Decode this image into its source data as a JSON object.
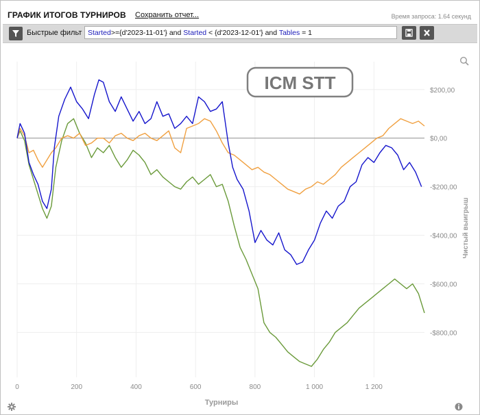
{
  "header": {
    "title": "ГРАФИК ИТОГОВ ТУРНИРОВ",
    "save_label": "Сохранить отчет...",
    "query_time": "Время запроса: 1.64 секунд"
  },
  "filter": {
    "label": "Быстрые фильт",
    "tokens": [
      {
        "t": "Started",
        "kw": true
      },
      {
        "t": ">={d'2023-11-01'} and ",
        "kw": false
      },
      {
        "t": "Started",
        "kw": true
      },
      {
        "t": " < {d'2023-12-01'} and ",
        "kw": false
      },
      {
        "t": "Tables",
        "kw": true
      },
      {
        "t": " = 1",
        "kw": false
      }
    ]
  },
  "icons": {
    "filter": "filter-icon",
    "save": "floppy-disk-icon",
    "clear": "close-icon",
    "zoom": "magnifier-icon",
    "settings": "gear-icon",
    "info": "info-icon"
  },
  "chart_data": {
    "type": "line",
    "watermark": "ICM STT",
    "xlabel": "Турниры",
    "ylabel": "Чистый выигрыш",
    "xlim": [
      0,
      1370
    ],
    "ylim": [
      -985,
      315
    ],
    "xticks": [
      0,
      200,
      400,
      600,
      800,
      1000,
      1200
    ],
    "xtick_labels": [
      "0",
      "200",
      "400",
      "600",
      "800",
      "1 000",
      "1 200"
    ],
    "yticks": [
      200,
      0,
      -200,
      -400,
      -600,
      -800
    ],
    "ytick_labels": [
      "$200,00",
      "$0,00",
      "-$200,00",
      "-$400,00",
      "-$600,00",
      "-$800,00"
    ],
    "grid": true,
    "colors": {
      "blue": "#1515cc",
      "orange": "#f0a040",
      "green": "#6a9a3a",
      "zero": "#9a9a9a",
      "grid": "#eeeeee",
      "tick": "#8a8a8a"
    },
    "series": [
      {
        "color": "blue",
        "points": [
          [
            0,
            0
          ],
          [
            10,
            60
          ],
          [
            25,
            20
          ],
          [
            40,
            -100
          ],
          [
            55,
            -150
          ],
          [
            70,
            -190
          ],
          [
            85,
            -260
          ],
          [
            100,
            -290
          ],
          [
            115,
            -210
          ],
          [
            125,
            -40
          ],
          [
            140,
            90
          ],
          [
            160,
            160
          ],
          [
            180,
            210
          ],
          [
            200,
            150
          ],
          [
            220,
            120
          ],
          [
            240,
            80
          ],
          [
            260,
            180
          ],
          [
            275,
            240
          ],
          [
            290,
            230
          ],
          [
            310,
            150
          ],
          [
            330,
            110
          ],
          [
            350,
            170
          ],
          [
            370,
            120
          ],
          [
            390,
            70
          ],
          [
            410,
            110
          ],
          [
            430,
            60
          ],
          [
            450,
            80
          ],
          [
            470,
            150
          ],
          [
            490,
            90
          ],
          [
            510,
            100
          ],
          [
            530,
            40
          ],
          [
            550,
            60
          ],
          [
            570,
            90
          ],
          [
            590,
            60
          ],
          [
            610,
            170
          ],
          [
            630,
            150
          ],
          [
            650,
            110
          ],
          [
            670,
            120
          ],
          [
            690,
            150
          ],
          [
            710,
            -20
          ],
          [
            725,
            -120
          ],
          [
            740,
            -170
          ],
          [
            760,
            -210
          ],
          [
            780,
            -300
          ],
          [
            800,
            -430
          ],
          [
            820,
            -380
          ],
          [
            840,
            -420
          ],
          [
            860,
            -440
          ],
          [
            880,
            -390
          ],
          [
            900,
            -460
          ],
          [
            920,
            -480
          ],
          [
            940,
            -520
          ],
          [
            960,
            -510
          ],
          [
            980,
            -460
          ],
          [
            1000,
            -420
          ],
          [
            1020,
            -350
          ],
          [
            1040,
            -300
          ],
          [
            1060,
            -330
          ],
          [
            1080,
            -280
          ],
          [
            1100,
            -260
          ],
          [
            1120,
            -200
          ],
          [
            1140,
            -180
          ],
          [
            1160,
            -110
          ],
          [
            1180,
            -80
          ],
          [
            1200,
            -100
          ],
          [
            1220,
            -60
          ],
          [
            1240,
            -30
          ],
          [
            1260,
            -40
          ],
          [
            1280,
            -70
          ],
          [
            1300,
            -130
          ],
          [
            1320,
            -100
          ],
          [
            1340,
            -140
          ],
          [
            1360,
            -200
          ]
        ]
      },
      {
        "color": "orange",
        "points": [
          [
            0,
            0
          ],
          [
            10,
            40
          ],
          [
            25,
            10
          ],
          [
            40,
            -60
          ],
          [
            55,
            -50
          ],
          [
            70,
            -90
          ],
          [
            85,
            -120
          ],
          [
            100,
            -90
          ],
          [
            115,
            -60
          ],
          [
            130,
            -40
          ],
          [
            150,
            0
          ],
          [
            170,
            10
          ],
          [
            190,
            0
          ],
          [
            210,
            20
          ],
          [
            230,
            -30
          ],
          [
            250,
            -20
          ],
          [
            270,
            0
          ],
          [
            290,
            0
          ],
          [
            310,
            -20
          ],
          [
            330,
            10
          ],
          [
            350,
            20
          ],
          [
            370,
            0
          ],
          [
            390,
            -10
          ],
          [
            410,
            10
          ],
          [
            430,
            20
          ],
          [
            450,
            0
          ],
          [
            470,
            -10
          ],
          [
            490,
            10
          ],
          [
            510,
            30
          ],
          [
            530,
            -40
          ],
          [
            550,
            -60
          ],
          [
            570,
            40
          ],
          [
            590,
            50
          ],
          [
            610,
            60
          ],
          [
            630,
            80
          ],
          [
            650,
            70
          ],
          [
            670,
            30
          ],
          [
            690,
            -20
          ],
          [
            710,
            -60
          ],
          [
            730,
            -70
          ],
          [
            750,
            -90
          ],
          [
            770,
            -110
          ],
          [
            790,
            -130
          ],
          [
            810,
            -120
          ],
          [
            830,
            -140
          ],
          [
            850,
            -150
          ],
          [
            870,
            -170
          ],
          [
            890,
            -190
          ],
          [
            910,
            -210
          ],
          [
            930,
            -220
          ],
          [
            950,
            -230
          ],
          [
            970,
            -210
          ],
          [
            990,
            -200
          ],
          [
            1010,
            -180
          ],
          [
            1030,
            -190
          ],
          [
            1050,
            -170
          ],
          [
            1070,
            -150
          ],
          [
            1090,
            -120
          ],
          [
            1110,
            -100
          ],
          [
            1130,
            -80
          ],
          [
            1150,
            -60
          ],
          [
            1170,
            -40
          ],
          [
            1190,
            -20
          ],
          [
            1210,
            0
          ],
          [
            1230,
            10
          ],
          [
            1250,
            40
          ],
          [
            1270,
            60
          ],
          [
            1290,
            80
          ],
          [
            1310,
            70
          ],
          [
            1330,
            60
          ],
          [
            1350,
            70
          ],
          [
            1370,
            50
          ]
        ]
      },
      {
        "color": "green",
        "points": [
          [
            0,
            0
          ],
          [
            10,
            30
          ],
          [
            25,
            -10
          ],
          [
            40,
            -110
          ],
          [
            55,
            -170
          ],
          [
            70,
            -230
          ],
          [
            85,
            -290
          ],
          [
            100,
            -330
          ],
          [
            115,
            -280
          ],
          [
            130,
            -120
          ],
          [
            150,
            -10
          ],
          [
            170,
            60
          ],
          [
            190,
            80
          ],
          [
            210,
            20
          ],
          [
            230,
            -20
          ],
          [
            250,
            -80
          ],
          [
            270,
            -40
          ],
          [
            290,
            -60
          ],
          [
            310,
            -30
          ],
          [
            330,
            -80
          ],
          [
            350,
            -120
          ],
          [
            370,
            -90
          ],
          [
            390,
            -50
          ],
          [
            410,
            -70
          ],
          [
            430,
            -100
          ],
          [
            450,
            -150
          ],
          [
            470,
            -130
          ],
          [
            490,
            -160
          ],
          [
            510,
            -180
          ],
          [
            530,
            -200
          ],
          [
            550,
            -210
          ],
          [
            570,
            -180
          ],
          [
            590,
            -160
          ],
          [
            610,
            -190
          ],
          [
            630,
            -170
          ],
          [
            650,
            -150
          ],
          [
            670,
            -200
          ],
          [
            690,
            -190
          ],
          [
            710,
            -260
          ],
          [
            730,
            -360
          ],
          [
            750,
            -450
          ],
          [
            770,
            -500
          ],
          [
            790,
            -560
          ],
          [
            810,
            -620
          ],
          [
            830,
            -760
          ],
          [
            850,
            -800
          ],
          [
            870,
            -820
          ],
          [
            890,
            -850
          ],
          [
            910,
            -880
          ],
          [
            930,
            -900
          ],
          [
            950,
            -920
          ],
          [
            970,
            -930
          ],
          [
            990,
            -940
          ],
          [
            1010,
            -910
          ],
          [
            1030,
            -870
          ],
          [
            1050,
            -840
          ],
          [
            1070,
            -800
          ],
          [
            1090,
            -780
          ],
          [
            1110,
            -760
          ],
          [
            1130,
            -730
          ],
          [
            1150,
            -700
          ],
          [
            1170,
            -680
          ],
          [
            1190,
            -660
          ],
          [
            1210,
            -640
          ],
          [
            1230,
            -620
          ],
          [
            1250,
            -600
          ],
          [
            1270,
            -580
          ],
          [
            1290,
            -600
          ],
          [
            1310,
            -620
          ],
          [
            1330,
            -600
          ],
          [
            1350,
            -640
          ],
          [
            1370,
            -720
          ]
        ]
      }
    ]
  }
}
